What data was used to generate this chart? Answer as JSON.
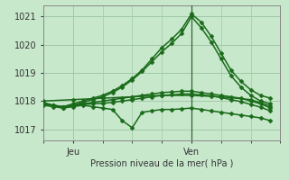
{
  "title": "Pression niveau de la mer( hPa )",
  "background_color": "#c8e8cc",
  "grid_color": "#a0c8a8",
  "line_color": "#1a6b1a",
  "xlim": [
    0,
    24
  ],
  "ylim": [
    1016.6,
    1021.4
  ],
  "yticks": [
    1017,
    1018,
    1019,
    1020,
    1021
  ],
  "xtick_positions": [
    3,
    15
  ],
  "xtick_labels": [
    "Jeu",
    "Ven"
  ],
  "vline_x": 15,
  "series": [
    {
      "x": [
        0,
        1,
        2,
        3,
        4,
        5,
        6,
        7,
        8,
        9,
        10,
        11,
        12,
        13,
        14,
        15,
        16,
        17,
        18,
        19,
        20,
        21,
        22,
        23
      ],
      "y": [
        1017.9,
        1017.85,
        1017.8,
        1017.9,
        1018.0,
        1018.1,
        1018.2,
        1018.35,
        1018.55,
        1018.8,
        1019.1,
        1019.5,
        1019.9,
        1020.2,
        1020.55,
        1021.1,
        1020.8,
        1020.3,
        1019.7,
        1019.1,
        1018.7,
        1018.4,
        1018.2,
        1018.1
      ],
      "marker": "D",
      "ms": 2.5,
      "lw": 1.1
    },
    {
      "x": [
        0,
        1,
        2,
        3,
        4,
        5,
        6,
        7,
        8,
        9,
        10,
        11,
        12,
        13,
        14,
        15,
        16,
        17,
        18,
        19,
        20,
        21,
        22,
        23
      ],
      "y": [
        1017.85,
        1017.8,
        1017.75,
        1017.85,
        1017.95,
        1018.05,
        1018.15,
        1018.3,
        1018.5,
        1018.75,
        1019.05,
        1019.4,
        1019.75,
        1020.05,
        1020.4,
        1021.0,
        1020.6,
        1020.1,
        1019.5,
        1018.9,
        1018.5,
        1018.2,
        1018.0,
        1017.9
      ],
      "marker": "D",
      "ms": 2.5,
      "lw": 1.1
    },
    {
      "x": [
        0,
        1,
        2,
        3,
        4,
        5,
        6,
        7,
        8,
        9,
        10,
        11,
        12,
        13,
        14,
        15,
        16,
        17,
        18,
        19,
        20,
        21,
        22,
        23
      ],
      "y": [
        1017.9,
        1017.85,
        1017.8,
        1017.85,
        1017.9,
        1017.95,
        1018.0,
        1018.05,
        1018.1,
        1018.15,
        1018.2,
        1018.25,
        1018.3,
        1018.32,
        1018.35,
        1018.35,
        1018.3,
        1018.25,
        1018.2,
        1018.15,
        1018.1,
        1018.0,
        1017.9,
        1017.75
      ],
      "marker": "D",
      "ms": 2.5,
      "lw": 1.1
    },
    {
      "x": [
        0,
        1,
        2,
        3,
        4,
        5,
        6,
        7,
        8,
        9,
        10,
        11,
        12,
        13,
        14,
        15,
        16,
        17,
        18,
        19,
        20,
        21,
        22,
        23
      ],
      "y": [
        1017.95,
        1017.85,
        1017.75,
        1017.8,
        1017.85,
        1017.8,
        1017.75,
        1017.7,
        1017.3,
        1017.05,
        1017.6,
        1017.65,
        1017.7,
        1017.7,
        1017.72,
        1017.75,
        1017.7,
        1017.65,
        1017.6,
        1017.55,
        1017.5,
        1017.45,
        1017.4,
        1017.3
      ],
      "marker": "D",
      "ms": 2.5,
      "lw": 1.1
    },
    {
      "x": [
        0,
        1,
        2,
        3,
        4,
        5,
        6,
        7,
        8,
        9,
        10,
        11,
        12,
        13,
        14,
        15,
        16,
        17,
        18,
        19,
        20,
        21,
        22,
        23
      ],
      "y": [
        1017.9,
        1017.82,
        1017.78,
        1017.82,
        1017.88,
        1017.9,
        1017.92,
        1017.95,
        1018.0,
        1018.05,
        1018.1,
        1018.15,
        1018.2,
        1018.22,
        1018.25,
        1018.25,
        1018.22,
        1018.18,
        1018.12,
        1018.05,
        1017.98,
        1017.88,
        1017.78,
        1017.65
      ],
      "marker": "D",
      "ms": 2.5,
      "lw": 1.1
    },
    {
      "x": [
        0,
        3,
        6,
        9,
        12,
        15,
        18,
        21,
        23
      ],
      "y": [
        1018.0,
        1018.05,
        1018.1,
        1018.15,
        1018.2,
        1018.2,
        1018.15,
        1018.05,
        1017.82
      ],
      "marker": "D",
      "ms": 2.5,
      "lw": 1.1
    }
  ]
}
